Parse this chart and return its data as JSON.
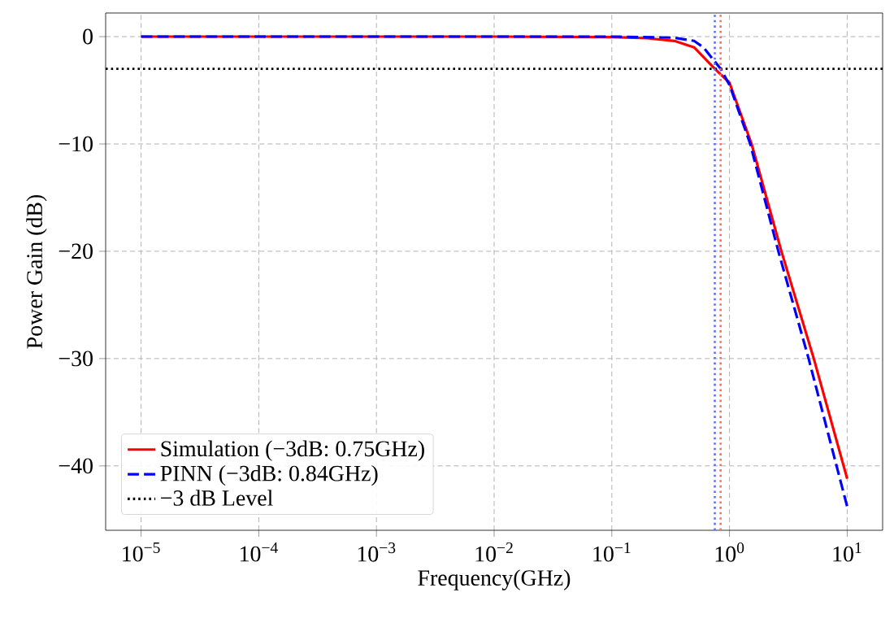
{
  "chart_data": {
    "type": "line",
    "xlabel": "Frequency(GHz)",
    "ylabel": "Power Gain (dB)",
    "log": "x",
    "grid": true,
    "legend": "bottom left",
    "xlim": [
      5e-06,
      20
    ],
    "ylim": [
      -46,
      2.2
    ],
    "xticks": [
      {
        "value": 1e-05,
        "label": "10$^{−5}$"
      },
      {
        "value": 0.0001,
        "label": "10$^{−4}$"
      },
      {
        "value": 0.001,
        "label": "10$^{−3}$"
      },
      {
        "value": 0.01,
        "label": "10$^{−2}$"
      },
      {
        "value": 0.1,
        "label": "10$^{−1}$"
      },
      {
        "value": 1,
        "label": "10$^{0}$"
      },
      {
        "value": 10,
        "label": "10$^{1}$"
      }
    ],
    "yticks": [
      {
        "value": -40,
        "label": "−40"
      },
      {
        "value": -30,
        "label": "−30"
      },
      {
        "value": -20,
        "label": "−20"
      },
      {
        "value": -10,
        "label": "−10"
      },
      0
    ],
    "series": [
      {
        "name": "Simulation (−3dB: 0.75GHz)",
        "color": "#ff0000",
        "line_style": "solid",
        "x": [
          1e-05,
          0.01,
          0.1,
          0.2,
          0.34,
          0.5,
          0.75,
          1,
          1.54,
          2.76,
          5.2,
          10
        ],
        "values": [
          0,
          0,
          -0.05,
          -0.15,
          -0.4,
          -1.0,
          -3.0,
          -4.3,
          -10,
          -20,
          -30,
          -41.2
        ]
      },
      {
        "name": "PINN (−3dB: 0.84GHz)",
        "color": "#0000ff",
        "line_style": "dashed",
        "x": [
          1e-05,
          0.01,
          0.1,
          0.34,
          0.5,
          0.6,
          0.84,
          1,
          1.5,
          2.6,
          4.7,
          10
        ],
        "values": [
          0,
          0,
          0,
          -0.1,
          -0.4,
          -1.0,
          -3.0,
          -4.5,
          -10,
          -20,
          -30,
          -43.8
        ]
      }
    ],
    "ref_lines": [
      {
        "axis": "y",
        "value": -3,
        "label": "−3 dB Level",
        "color": "#000000",
        "line_style": "dotted"
      },
      {
        "axis": "x",
        "value": 0.75,
        "color": "#6a6aff",
        "line_style": "dotted"
      },
      {
        "axis": "x",
        "value": 0.84,
        "color": "#ff6a6a",
        "line_style": "dotted"
      }
    ]
  }
}
